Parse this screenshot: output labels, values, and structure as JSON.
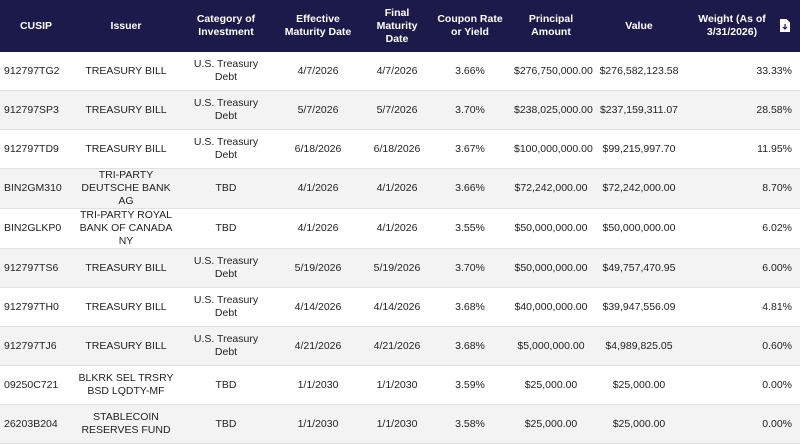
{
  "table": {
    "headers": [
      "CUSIP",
      "Issuer",
      "Category of Investment",
      "Effective Maturity Date",
      "Final Maturity Date",
      "Coupon Rate or Yield",
      "Principal Amount",
      "Value",
      "Weight (As of 3/31/2026)"
    ],
    "rows": [
      [
        "912797TG2",
        "TREASURY BILL",
        "U.S. Treasury Debt",
        "4/7/2026",
        "4/7/2026",
        "3.66%",
        "$276,750,000.00",
        "$276,582,123.58",
        "33.33%"
      ],
      [
        "912797SP3",
        "TREASURY BILL",
        "U.S. Treasury Debt",
        "5/7/2026",
        "5/7/2026",
        "3.70%",
        "$238,025,000.00",
        "$237,159,311.07",
        "28.58%"
      ],
      [
        "912797TD9",
        "TREASURY BILL",
        "U.S. Treasury Debt",
        "6/18/2026",
        "6/18/2026",
        "3.67%",
        "$100,000,000.00",
        "$99,215,997.70",
        "11.95%"
      ],
      [
        "BIN2GM310",
        "TRI-PARTY DEUTSCHE BANK AG",
        "TBD",
        "4/1/2026",
        "4/1/2026",
        "3.66%",
        "$72,242,000.00",
        "$72,242,000.00",
        "8.70%"
      ],
      [
        "BIN2GLKP0",
        "TRI-PARTY ROYAL BANK OF CANADA NY",
        "TBD",
        "4/1/2026",
        "4/1/2026",
        "3.55%",
        "$50,000,000.00",
        "$50,000,000.00",
        "6.02%"
      ],
      [
        "912797TS6",
        "TREASURY BILL",
        "U.S. Treasury Debt",
        "5/19/2026",
        "5/19/2026",
        "3.70%",
        "$50,000,000.00",
        "$49,757,470.95",
        "6.00%"
      ],
      [
        "912797TH0",
        "TREASURY BILL",
        "U.S. Treasury Debt",
        "4/14/2026",
        "4/14/2026",
        "3.68%",
        "$40,000,000.00",
        "$39,947,556.09",
        "4.81%"
      ],
      [
        "912797TJ6",
        "TREASURY BILL",
        "U.S. Treasury Debt",
        "4/21/2026",
        "4/21/2026",
        "3.68%",
        "$5,000,000.00",
        "$4,989,825.05",
        "0.60%"
      ],
      [
        "09250C721",
        "BLKRK SEL TRSRY BSD LQDTY-MF",
        "TBD",
        "1/1/2030",
        "1/1/2030",
        "3.59%",
        "$25,000.00",
        "$25,000.00",
        "0.00%"
      ],
      [
        "26203B204",
        "STABLECOIN RESERVES FUND",
        "TBD",
        "1/1/2030",
        "1/1/2030",
        "3.58%",
        "$25,000.00",
        "$25,000.00",
        "0.00%"
      ]
    ]
  }
}
